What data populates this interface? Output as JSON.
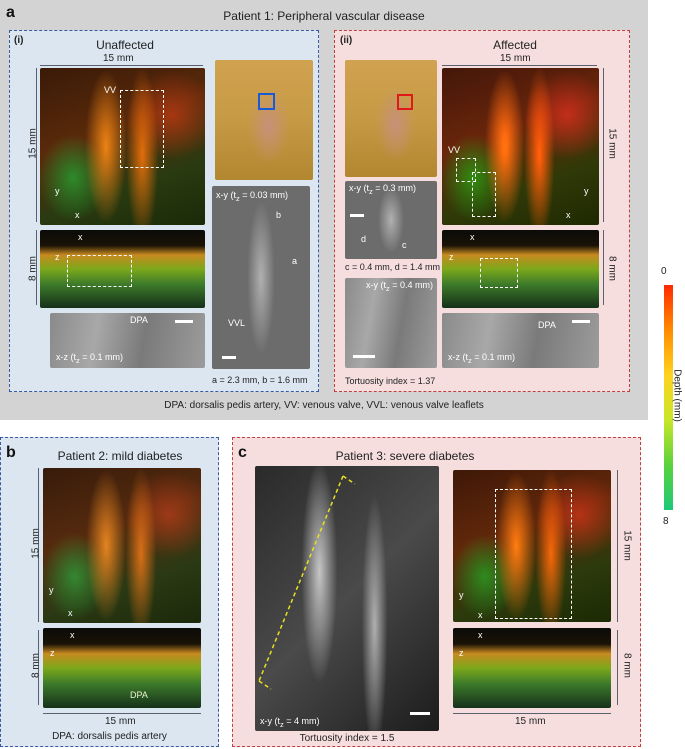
{
  "panel_a": {
    "letter": "a",
    "title": "Patient 1: Peripheral vascular disease",
    "footer": "DPA: dorsalis pedis artery,  VV: venous valve, VVL: venous valve leaflets",
    "sub_i": {
      "label": "(i)",
      "title": "Unaffected",
      "scale_top": "15 mm",
      "scale_left_top": "15 mm",
      "scale_left_bottom": "8 mm",
      "vv": "VV",
      "dpa": "DPA",
      "xz_caption": "x-z (t",
      "xz_caption_val": " = 0.1 mm)",
      "xy_caption": "x-y (t",
      "xy_caption_val": " = 0.03 mm)",
      "mark_a": "a",
      "mark_b": "b",
      "vvl": "VVL",
      "measure": "a = 2.3 mm, b = 1.6 mm",
      "axis_y": "y",
      "axis_x": "x",
      "axis_z": "z",
      "sub_z": "z"
    },
    "sub_ii": {
      "label": "(ii)",
      "title": "Affected",
      "scale_top": "15 mm",
      "scale_right_top": "15 mm",
      "scale_right_bottom": "8 mm",
      "vv": "VV",
      "dpa": "DPA",
      "xy_caption": "x-y (t",
      "xy_caption_val": " = 0.3 mm)",
      "xy2_caption": "x-y (t",
      "xy2_caption_val": " = 0.4 mm)",
      "xz_caption": "x-z (t",
      "xz_caption_val": " = 0.1 mm)",
      "mark_c": "c",
      "mark_d": "d",
      "measure": "c = 0.4 mm, d = 1.4 mm",
      "tortuosity": "Tortuosity index = 1.37",
      "axis_y": "y",
      "axis_x": "x",
      "axis_z": "z",
      "sub_z": "z"
    }
  },
  "panel_b": {
    "letter": "b",
    "title": "Patient 2: mild diabetes",
    "scale_left_top": "15 mm",
    "scale_left_bottom": "8 mm",
    "scale_bottom": "15 mm",
    "dpa": "DPA",
    "footer": "DPA: dorsalis pedis artery",
    "axis_y": "y",
    "axis_x": "x",
    "axis_z": "z"
  },
  "panel_c": {
    "letter": "c",
    "title": "Patient 3: severe diabetes",
    "xy_caption": "x-y (t",
    "xy_caption_val": " = 4 mm)",
    "sub_z": "z",
    "tortuosity": "Tortuosity index = 1.5",
    "scale_right_top": "15 mm",
    "scale_right_bottom": "8 mm",
    "scale_bottom": "15 mm",
    "axis_y": "y",
    "axis_x": "x",
    "axis_z": "z"
  },
  "colorbar": {
    "label": "Depth (mm)",
    "top": "0",
    "bottom": "8",
    "colors": [
      "#ff2a00",
      "#ff8c00",
      "#ffd21e",
      "#c8e628",
      "#5ad23c",
      "#1ec878"
    ]
  }
}
